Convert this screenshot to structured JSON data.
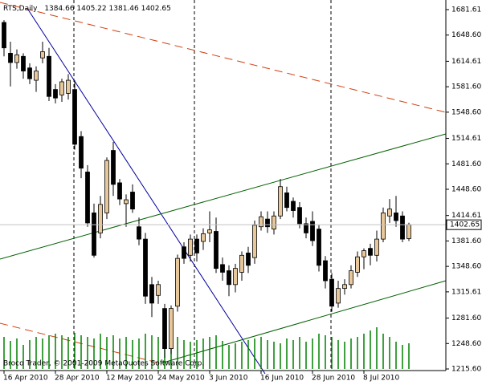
{
  "chart_data": {
    "type": "candlestick",
    "title": "RTS,Daily",
    "footer": "Broco Trader, © 2001-2009 MetaQuotes Software Corp.",
    "categories": [
      "16 Apr 2010",
      null,
      null,
      null,
      null,
      null,
      null,
      null,
      "28 Apr 2010",
      null,
      null,
      null,
      null,
      null,
      null,
      null,
      "12 May 2010",
      null,
      null,
      null,
      null,
      null,
      null,
      null,
      "24 May 2010",
      null,
      null,
      null,
      null,
      null,
      null,
      null,
      "3 Jun 2010",
      null,
      null,
      null,
      null,
      null,
      null,
      null,
      "16 Jun 2010",
      null,
      null,
      null,
      null,
      null,
      null,
      null,
      "28 Jun 2010",
      null,
      null,
      null,
      null,
      null,
      null,
      null,
      "8 Jul 2010",
      null,
      null,
      null,
      null,
      null,
      null,
      null
    ],
    "open": [
      1665,
      1625,
      1613,
      1621,
      1606,
      1590,
      1619,
      1621,
      1578,
      1571,
      1573,
      1578,
      1517,
      1471,
      1418,
      1392,
      1418,
      1499,
      1457,
      1430,
      1445,
      1400,
      1384,
      1325,
      1311,
      1294,
      1242,
      1297,
      1374,
      1363,
      1384,
      1381,
      1392,
      1394,
      1351,
      1343,
      1325,
      1341,
      1366,
      1360,
      1400,
      1410,
      1397,
      1414,
      1444,
      1433,
      1425,
      1404,
      1407,
      1397,
      1356,
      1332,
      1301,
      1320,
      1325,
      1341,
      1361,
      1372,
      1363,
      1384,
      1414,
      1418,
      1414,
      1384.66
    ],
    "high": [
      1668,
      1640,
      1630,
      1625,
      1612,
      1608,
      1640,
      1632,
      1585,
      1592,
      1598,
      1590,
      1524,
      1480,
      1430,
      1440,
      1490,
      1510,
      1462,
      1442,
      1455,
      1412,
      1392,
      1335,
      1330,
      1300,
      1298,
      1364,
      1380,
      1390,
      1390,
      1398,
      1420,
      1412,
      1360,
      1350,
      1352,
      1368,
      1374,
      1408,
      1420,
      1420,
      1420,
      1462,
      1452,
      1438,
      1432,
      1412,
      1420,
      1402,
      1362,
      1340,
      1330,
      1332,
      1350,
      1368,
      1372,
      1378,
      1395,
      1425,
      1436,
      1440,
      1420,
      1405.22
    ],
    "low": [
      1621,
      1582,
      1605,
      1592,
      1585,
      1575,
      1612,
      1563,
      1560,
      1562,
      1565,
      1500,
      1463,
      1400,
      1360,
      1385,
      1410,
      1440,
      1428,
      1400,
      1418,
      1376,
      1300,
      1283,
      1300,
      1230,
      1235,
      1290,
      1352,
      1355,
      1355,
      1370,
      1380,
      1340,
      1330,
      1310,
      1315,
      1330,
      1340,
      1352,
      1395,
      1392,
      1390,
      1410,
      1420,
      1412,
      1398,
      1385,
      1375,
      1342,
      1320,
      1290,
      1295,
      1312,
      1320,
      1335,
      1345,
      1350,
      1355,
      1380,
      1405,
      1400,
      1380,
      1381.46
    ],
    "close": [
      1632,
      1613,
      1623,
      1602,
      1592,
      1602,
      1627,
      1569,
      1567,
      1588,
      1590,
      1507,
      1476,
      1405,
      1363,
      1429,
      1486,
      1455,
      1436,
      1435,
      1423,
      1384,
      1310,
      1301,
      1325,
      1242,
      1294,
      1359,
      1359,
      1384,
      1366,
      1391,
      1396,
      1346,
      1341,
      1325,
      1346,
      1363,
      1350,
      1402,
      1413,
      1400,
      1414,
      1452,
      1425,
      1421,
      1404,
      1392,
      1382,
      1350,
      1330,
      1297,
      1320,
      1325,
      1343,
      1361,
      1369,
      1363,
      1384,
      1418,
      1423,
      1408,
      1384,
      1402.65
    ],
    "volume": [
      40,
      35,
      38,
      30,
      36,
      40,
      38,
      42,
      44,
      42,
      40,
      45,
      42,
      40,
      38,
      44,
      40,
      42,
      38,
      40,
      36,
      38,
      44,
      42,
      40,
      45,
      38,
      40,
      36,
      34,
      36,
      38,
      40,
      42,
      35,
      30,
      32,
      34,
      36,
      38,
      40,
      36,
      34,
      32,
      38,
      36,
      40,
      34,
      38,
      44,
      42,
      40,
      36,
      34,
      38,
      40,
      44,
      48,
      52,
      44,
      40,
      34,
      30,
      32
    ],
    "up_color": "#e8c89a",
    "down_color": "#000000",
    "volume_color": "#008000",
    "ylim": [
      1215.6,
      1681.61
    ],
    "yticks": [
      {
        "value": 1215.6,
        "label": "1215.60"
      },
      {
        "value": 1248.6,
        "label": "1248.60"
      },
      {
        "value": 1281.6,
        "label": "1281.60"
      },
      1315.61,
      {
        "value": 1348.6,
        "label": "1348.60"
      },
      {
        "value": 1381.6,
        "label": "1381.60"
      },
      1414.61,
      {
        "value": 1448.6,
        "label": "1448.60"
      },
      {
        "value": 1481.6,
        "label": "1481.60"
      },
      1514.61,
      {
        "value": 1548.6,
        "label": "1548.60"
      },
      {
        "value": 1581.6,
        "label": "1581.60"
      },
      1614.61,
      {
        "value": 1648.6,
        "label": "1648.60"
      },
      1681.61
    ]
  }
}
